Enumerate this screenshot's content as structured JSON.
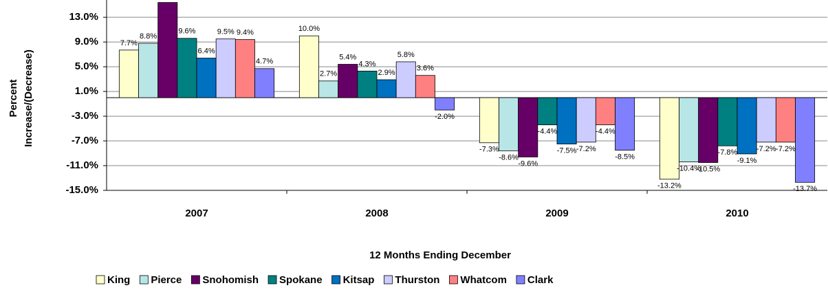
{
  "chart_data": {
    "type": "bar",
    "xlabel": "12 Months Ending December",
    "ylabel": [
      "Percent",
      "Increase/(Decrease)"
    ],
    "categories": [
      "2007",
      "2008",
      "2009",
      "2010"
    ],
    "series": [
      {
        "name": "King",
        "color": "#ffffcc",
        "values": [
          7.7,
          10.0,
          -7.3,
          -13.2
        ],
        "value_labels": [
          "7.7%",
          "10.0%",
          "-7.3%",
          "-13.2%"
        ]
      },
      {
        "name": "Pierce",
        "color": "#b8e6e6",
        "values": [
          8.8,
          2.7,
          -8.6,
          -10.4
        ],
        "value_labels": [
          "8.8%",
          "2.7%",
          "-8.6%",
          "-10.4%"
        ]
      },
      {
        "name": "Snohomish",
        "color": "#660066",
        "values": [
          15.4,
          5.4,
          -9.6,
          -10.5
        ],
        "value_labels": [
          null,
          "5.4%",
          "-9.6%",
          "-10.5%"
        ]
      },
      {
        "name": "Spokane",
        "color": "#008080",
        "values": [
          9.6,
          4.3,
          -4.4,
          -7.8
        ],
        "value_labels": [
          "9.6%",
          "4.3%",
          "-4.4%",
          "-7.8%"
        ]
      },
      {
        "name": "Kitsap",
        "color": "#0070c0",
        "values": [
          6.4,
          2.9,
          -7.5,
          -9.1
        ],
        "value_labels": [
          "6.4%",
          "2.9%",
          "-7.5%",
          "-9.1%"
        ]
      },
      {
        "name": "Thurston",
        "color": "#ccccff",
        "values": [
          9.5,
          5.8,
          -7.2,
          -7.2
        ],
        "value_labels": [
          "9.5%",
          "5.8%",
          "-7.2%",
          "-7.2%"
        ]
      },
      {
        "name": "Whatcom",
        "color": "#ff8080",
        "values": [
          9.4,
          3.6,
          -4.4,
          -7.2
        ],
        "value_labels": [
          "9.4%",
          "3.6%",
          "-4.4%",
          "-7.2%"
        ]
      },
      {
        "name": "Clark",
        "color": "#8080ff",
        "values": [
          4.7,
          -2.0,
          -8.5,
          -13.7
        ],
        "value_labels": [
          "4.7%",
          "-2.0%",
          "-8.5%",
          "-13.7%"
        ]
      }
    ],
    "ylim": [
      -15,
      15.8
    ],
    "yticks": [
      {
        "value": 13,
        "label": "13.0%"
      },
      {
        "value": 9,
        "label": "9.0%"
      },
      {
        "value": 5,
        "label": "5.0%"
      },
      {
        "value": 1,
        "label": "1.0%"
      },
      {
        "value": -3,
        "label": "-3.0%"
      },
      {
        "value": -7,
        "label": "-7.0%"
      },
      {
        "value": -11,
        "label": "-11.0%"
      },
      {
        "value": -15,
        "label": "-15.0%"
      }
    ],
    "grid": true,
    "legend": "bottom"
  }
}
